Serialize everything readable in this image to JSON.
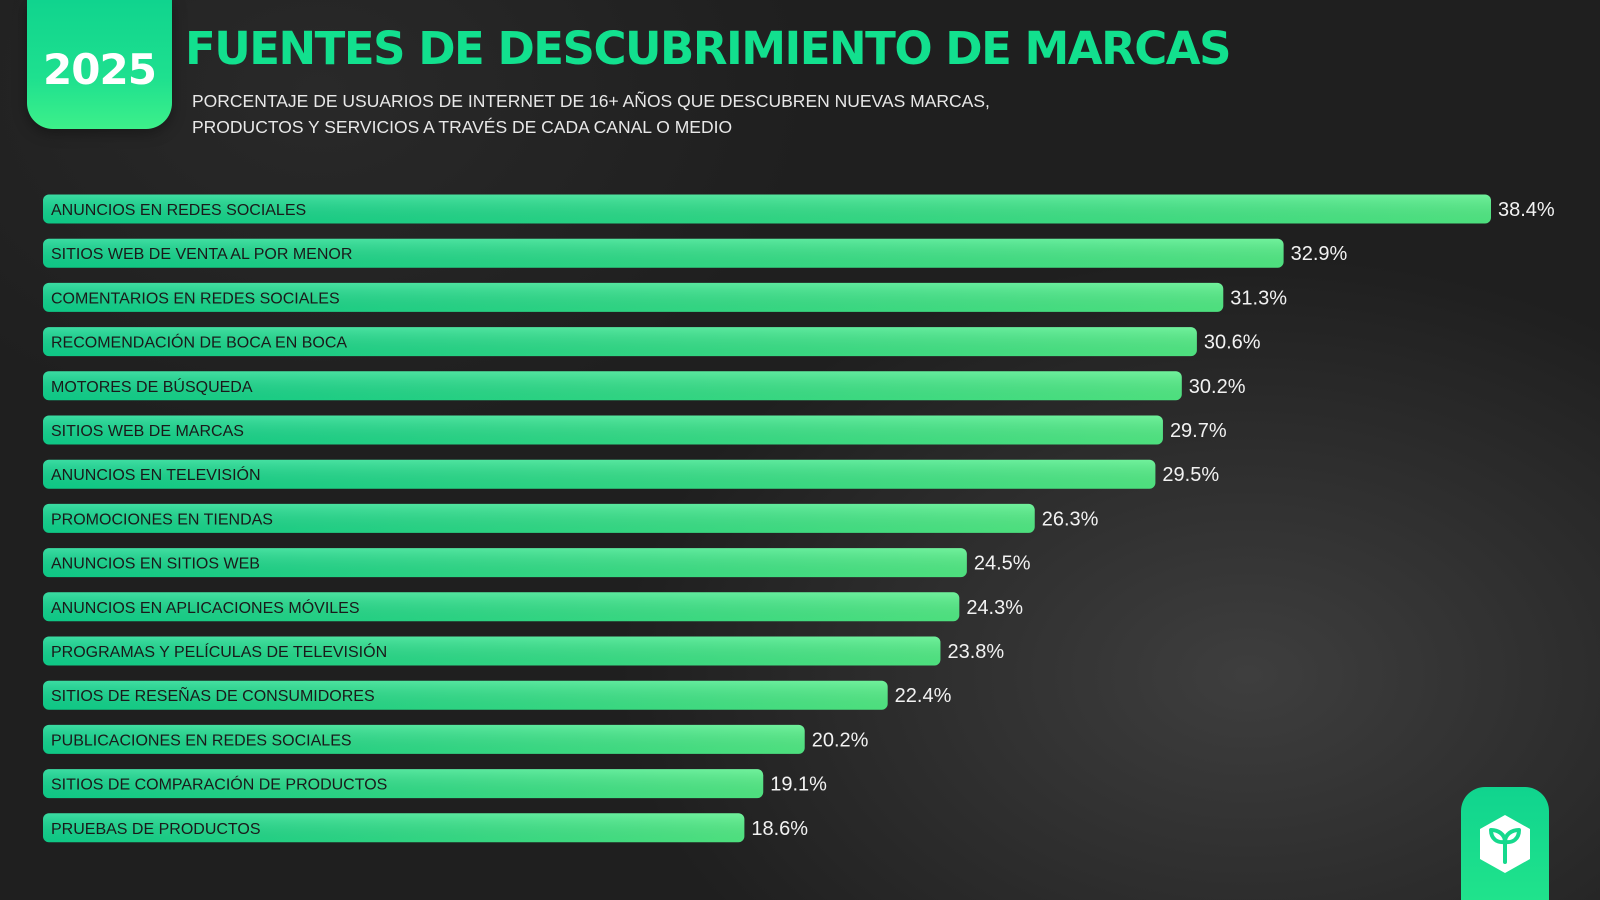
{
  "badge": {
    "year": "2025"
  },
  "header": {
    "title": "FUENTES DE DESCUBRIMIENTO DE MARCAS",
    "subtitle": "PORCENTAJE DE USUARIOS DE INTERNET DE 16+ AÑOS QUE DESCUBREN NUEVAS MARCAS, PRODUCTOS Y SERVICIOS A TRAVÉS DE CADA CANAL O MEDIO"
  },
  "colors": {
    "accent": "#12e08e",
    "bar_start": "#0fd48e",
    "bar_end": "#52ee86",
    "background": "#1f1f1f"
  },
  "logo": {
    "icon": "leaf-cube-icon"
  },
  "chart_data": {
    "type": "bar",
    "orientation": "horizontal",
    "categories": [
      "ANUNCIOS EN REDES SOCIALES",
      "SITIOS WEB DE VENTA AL POR MENOR",
      "COMENTARIOS EN REDES SOCIALES",
      "RECOMENDACIÓN DE BOCA EN BOCA",
      "MOTORES DE BÚSQUEDA",
      "SITIOS WEB DE MARCAS",
      "ANUNCIOS EN TELEVISIÓN",
      "PROMOCIONES EN TIENDAS",
      "ANUNCIOS EN SITIOS WEB",
      "ANUNCIOS EN APLICACIONES MÓVILES",
      "PROGRAMAS Y PELÍCULAS DE TELEVISIÓN",
      "SITIOS DE RESEÑAS DE CONSUMIDORES",
      "PUBLICACIONES EN REDES SOCIALES",
      "SITIOS DE COMPARACIÓN DE PRODUCTOS",
      "PRUEBAS DE PRODUCTOS"
    ],
    "values": [
      38.4,
      32.9,
      31.3,
      30.6,
      30.2,
      29.7,
      29.5,
      26.3,
      24.5,
      24.3,
      23.8,
      22.4,
      20.2,
      19.1,
      18.6
    ],
    "value_labels": [
      "38.4%",
      "32.9%",
      "31.3%",
      "30.6%",
      "30.2%",
      "29.7%",
      "29.5%",
      "26.3%",
      "24.5%",
      "24.3%",
      "23.8%",
      "22.4%",
      "20.2%",
      "19.1%",
      "18.6%"
    ],
    "title": "FUENTES DE DESCUBRIMIENTO DE MARCAS",
    "xlabel": "",
    "ylabel": "",
    "xlim": [
      0,
      38.4
    ],
    "grid": false,
    "legend": "none"
  }
}
